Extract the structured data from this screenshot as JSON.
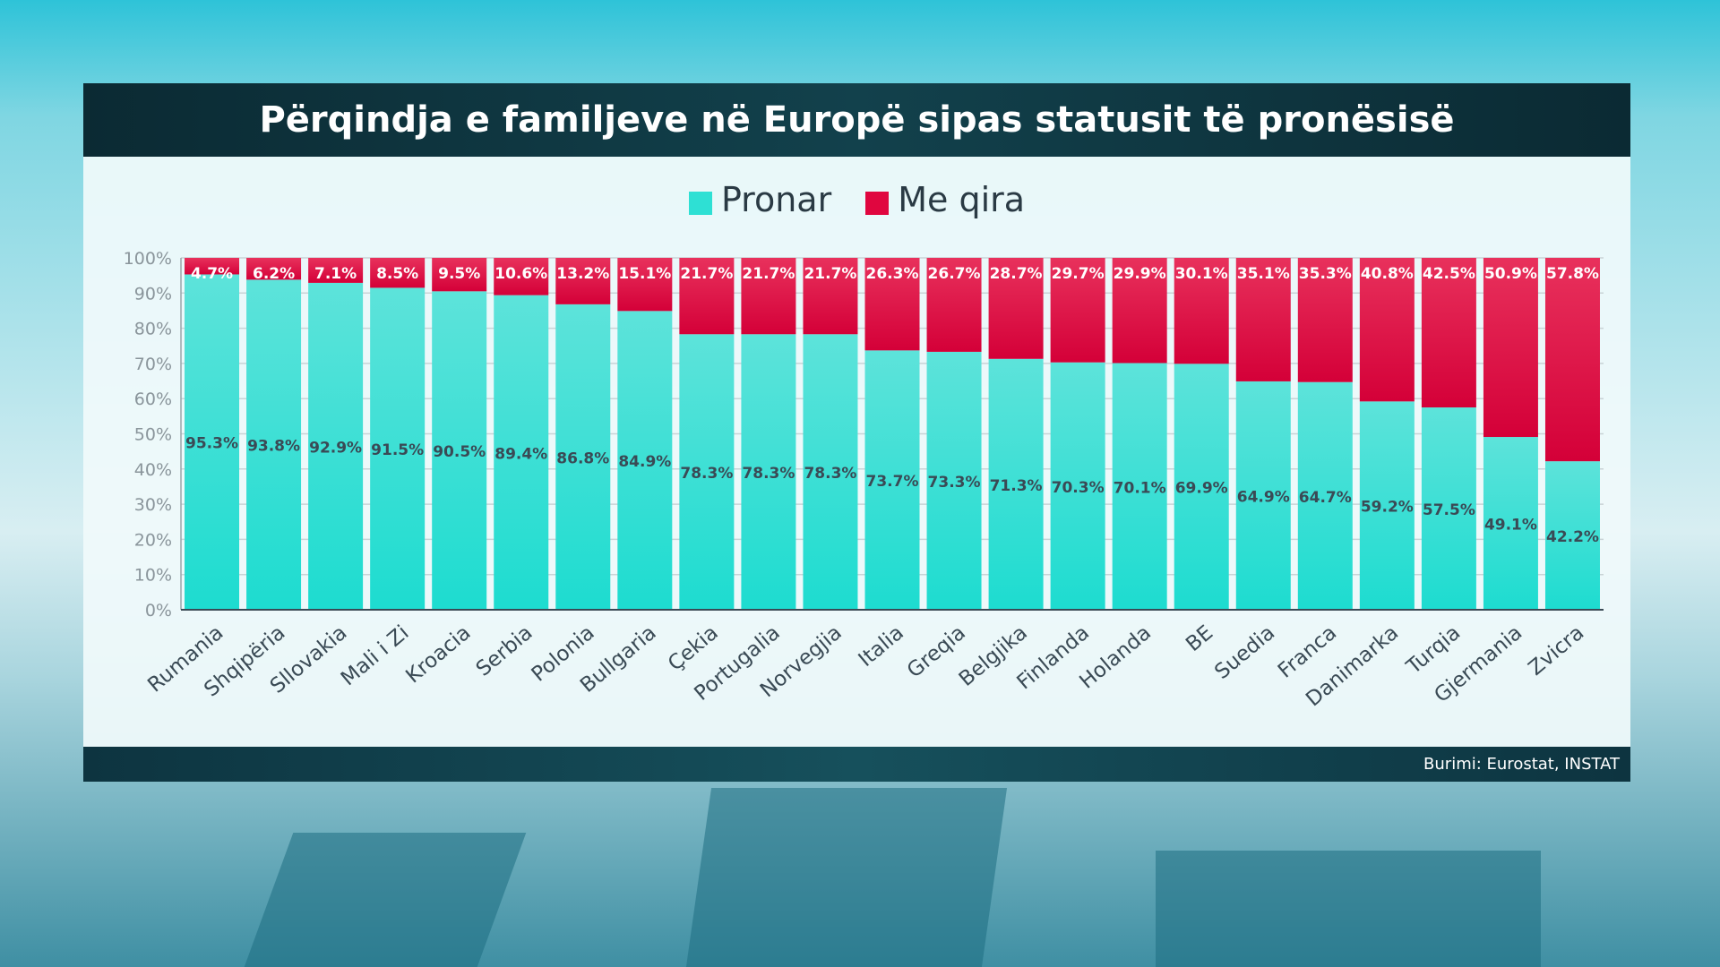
{
  "chart_data": {
    "type": "bar",
    "stacked": true,
    "title": "Përqindja e familjeve në Europë sipas statusit të pronësisë",
    "categories": [
      "Rumania",
      "Shqipëria",
      "Sllovakia",
      "Mali i Zi",
      "Kroacia",
      "Serbia",
      "Polonia",
      "Bullgaria",
      "Çekia",
      "Portugalia",
      "Norvegjia",
      "Italia",
      "Greqia",
      "Belgjika",
      "Finlanda",
      "Holanda",
      "BE",
      "Suedia",
      "Franca",
      "Danimarka",
      "Turqia",
      "Gjermania",
      "Zvicra"
    ],
    "series": [
      {
        "name": "Pronar",
        "color": "#2ee0d4",
        "values": [
          95.3,
          93.8,
          92.9,
          91.5,
          90.5,
          89.4,
          86.8,
          84.9,
          78.3,
          78.3,
          78.3,
          73.7,
          73.3,
          71.3,
          70.3,
          70.1,
          69.9,
          64.9,
          64.7,
          59.2,
          57.5,
          49.1,
          42.2
        ]
      },
      {
        "name": "Me qira",
        "color": "#e0063f",
        "values": [
          4.7,
          6.2,
          7.1,
          8.5,
          9.5,
          10.6,
          13.2,
          15.1,
          21.7,
          21.7,
          21.7,
          26.3,
          26.7,
          28.7,
          29.7,
          29.9,
          30.1,
          35.1,
          35.3,
          40.8,
          42.5,
          50.9,
          57.8
        ]
      }
    ],
    "ylim": [
      0,
      100
    ],
    "yticks": [
      "0%",
      "10%",
      "20%",
      "30%",
      "40%",
      "50%",
      "60%",
      "70%",
      "80%",
      "90%",
      "100%"
    ],
    "grid": true,
    "legend_position": "top-center"
  },
  "footer": {
    "source": "Burimi: Eurostat, INSTAT"
  }
}
